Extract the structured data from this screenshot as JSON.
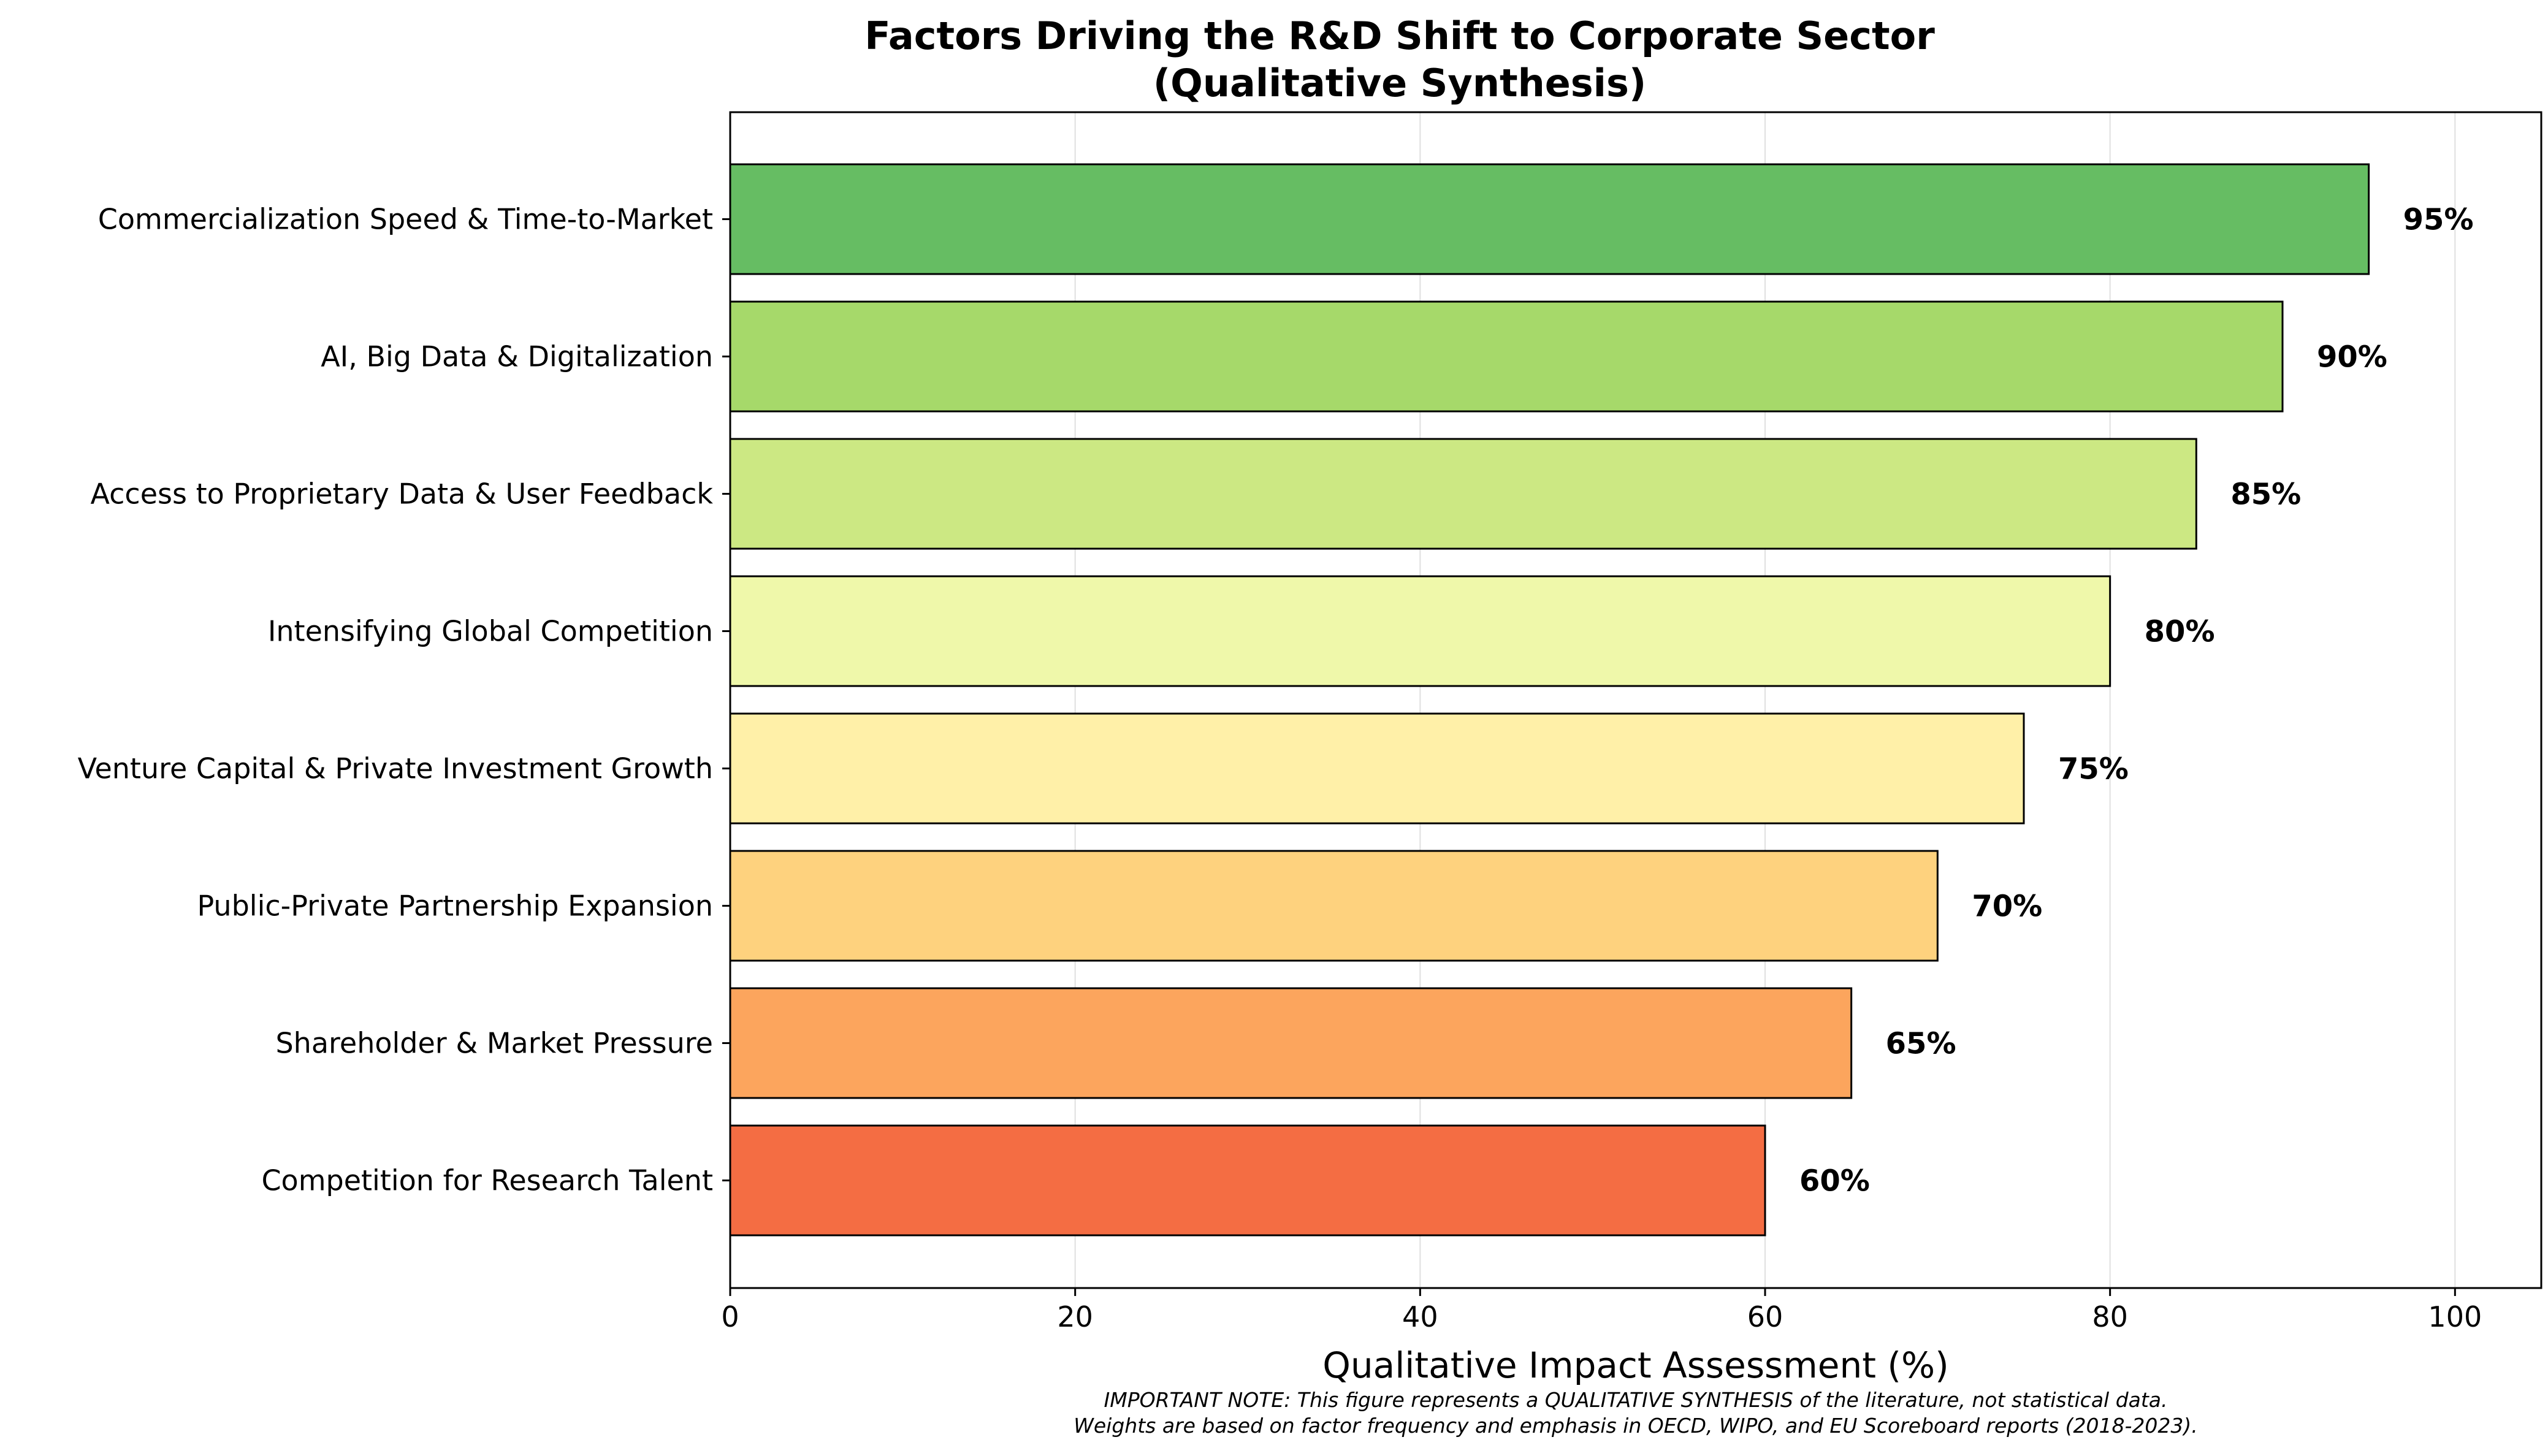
{
  "chart_data": {
    "type": "bar",
    "orientation": "horizontal",
    "title_lines": [
      "Factors Driving the R&D Shift to Corporate Sector",
      "(Qualitative Synthesis)"
    ],
    "xlabel": "Qualitative Impact Assessment (%)",
    "ylabel": "",
    "xlim": [
      0,
      105
    ],
    "xticks": [
      0,
      20,
      40,
      60,
      80,
      100
    ],
    "grid": "vertical",
    "value_label_suffix": "%",
    "categories": [
      "Commercialization Speed & Time-to-Market",
      "AI, Big Data & Digitalization",
      "Access to Proprietary Data & User Feedback",
      "Intensifying Global Competition",
      "Venture Capital & Private Investment Growth",
      "Public-Private Partnership Expansion",
      "Shareholder & Market Pressure",
      "Competition for Research Talent"
    ],
    "values": [
      95,
      90,
      85,
      80,
      75,
      70,
      65,
      60
    ],
    "value_labels": [
      "95%",
      "90%",
      "85%",
      "80%",
      "75%",
      "70%",
      "65%",
      "60%"
    ],
    "colors": [
      "#66bd63",
      "#a6d96a",
      "#cce883",
      "#eff8aa",
      "#fff0a8",
      "#fed27e",
      "#fca55d",
      "#f46d43"
    ],
    "note_lines": [
      "IMPORTANT NOTE: This figure represents a QUALITATIVE SYNTHESIS of the literature, not statistical data.",
      "Weights are based on factor frequency and emphasis in OECD, WIPO, and EU Scoreboard reports (2018-2023)."
    ]
  }
}
